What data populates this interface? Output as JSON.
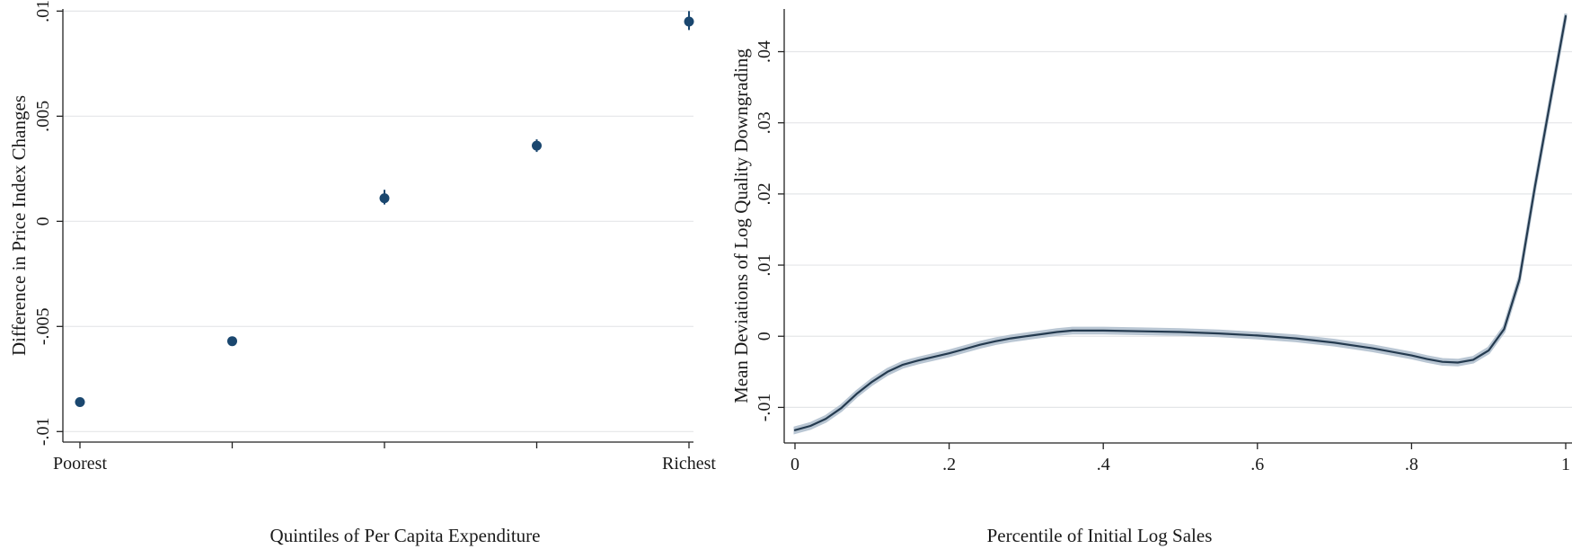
{
  "chart_data": [
    {
      "type": "scatter",
      "title": "",
      "xlabel": "Quintiles of Per Capita Expenditure",
      "ylabel": "Difference in Price Index Changes",
      "categories": [
        "Poorest",
        "",
        "",
        "",
        "Richest"
      ],
      "x": [
        1,
        2,
        3,
        4,
        5
      ],
      "values": [
        -0.0086,
        -0.0057,
        0.0011,
        0.0036,
        0.0095
      ],
      "ci": [
        [
          -0.0088,
          -0.0084
        ],
        [
          -0.0059,
          -0.0055
        ],
        [
          0.0008,
          0.0015
        ],
        [
          0.0033,
          0.0039
        ],
        [
          0.0091,
          0.01
        ]
      ],
      "xlim": [
        0.9,
        5.1
      ],
      "ylim": [
        -0.0105,
        0.0101
      ],
      "yticks": [
        -0.01,
        -0.005,
        0,
        0.005,
        0.01
      ],
      "ytick_labels": [
        "-.01",
        "-.005",
        "0",
        ".005",
        ".01"
      ],
      "grid": true,
      "color": "#1a476f"
    },
    {
      "type": "line",
      "title": "",
      "xlabel": "Percentile of Initial Log Sales",
      "ylabel": "Mean Deviations of Log Quality Downgrading",
      "x": [
        0,
        0.02,
        0.04,
        0.06,
        0.08,
        0.1,
        0.12,
        0.14,
        0.16,
        0.18,
        0.2,
        0.22,
        0.24,
        0.26,
        0.28,
        0.3,
        0.32,
        0.34,
        0.36,
        0.38,
        0.4,
        0.45,
        0.5,
        0.55,
        0.6,
        0.65,
        0.7,
        0.75,
        0.8,
        0.82,
        0.84,
        0.86,
        0.88,
        0.9,
        0.92,
        0.94,
        0.96,
        0.98,
        1.0
      ],
      "values": [
        -0.0132,
        -0.0126,
        -0.0116,
        -0.0101,
        -0.0081,
        -0.0064,
        -0.005,
        -0.004,
        -0.0034,
        -0.0029,
        -0.0024,
        -0.0018,
        -0.0012,
        -0.0007,
        -0.0003,
        0.0,
        0.0003,
        0.0006,
        0.0008,
        0.0008,
        0.0008,
        0.0007,
        0.0006,
        0.0004,
        0.0001,
        -0.0003,
        -0.0009,
        -0.0017,
        -0.0027,
        -0.0032,
        -0.0036,
        -0.0037,
        -0.0033,
        -0.002,
        0.001,
        0.008,
        0.021,
        0.033,
        0.045
      ],
      "xlim": [
        -0.01,
        1.0
      ],
      "ylim": [
        -0.015,
        0.046
      ],
      "xticks": [
        0,
        0.2,
        0.4,
        0.6,
        0.8,
        1.0
      ],
      "xtick_labels": [
        "0",
        ".2",
        ".4",
        ".6",
        ".8",
        "1"
      ],
      "yticks": [
        -0.01,
        0,
        0.01,
        0.02,
        0.03,
        0.04
      ],
      "ytick_labels": [
        "-.01",
        "0",
        ".01",
        ".02",
        ".03",
        ".04"
      ],
      "grid": true,
      "color": "#243a4f",
      "band_color": "#b9c6d3"
    }
  ]
}
